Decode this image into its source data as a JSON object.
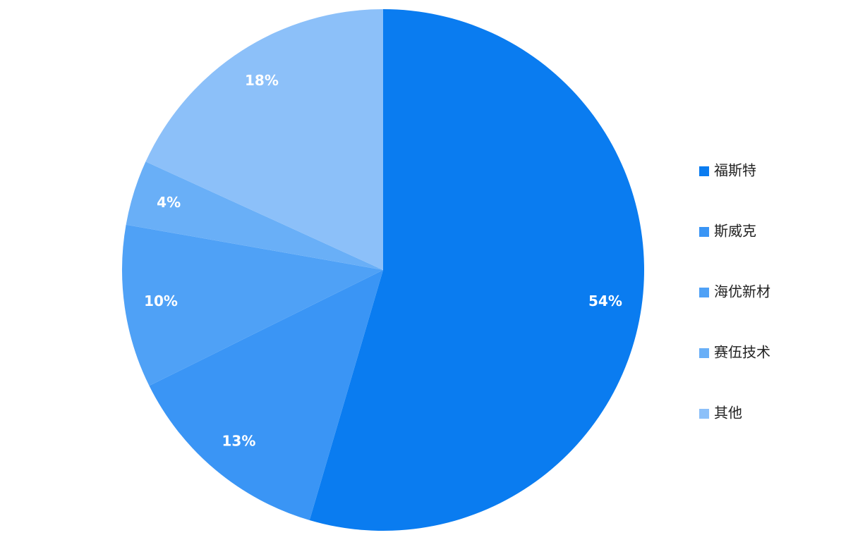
{
  "chart_data": {
    "type": "pie",
    "categories": [
      "福斯特",
      "斯威克",
      "海优新材",
      "赛伍技术",
      "其他"
    ],
    "values": [
      54,
      13,
      10,
      4,
      18
    ],
    "value_labels": [
      "54%",
      "13%",
      "10%",
      "4%",
      "18%"
    ],
    "colors": [
      "#0a7cf0",
      "#3a95f5",
      "#4fa1f6",
      "#69aff7",
      "#8cc0f9"
    ],
    "legend": "right"
  }
}
